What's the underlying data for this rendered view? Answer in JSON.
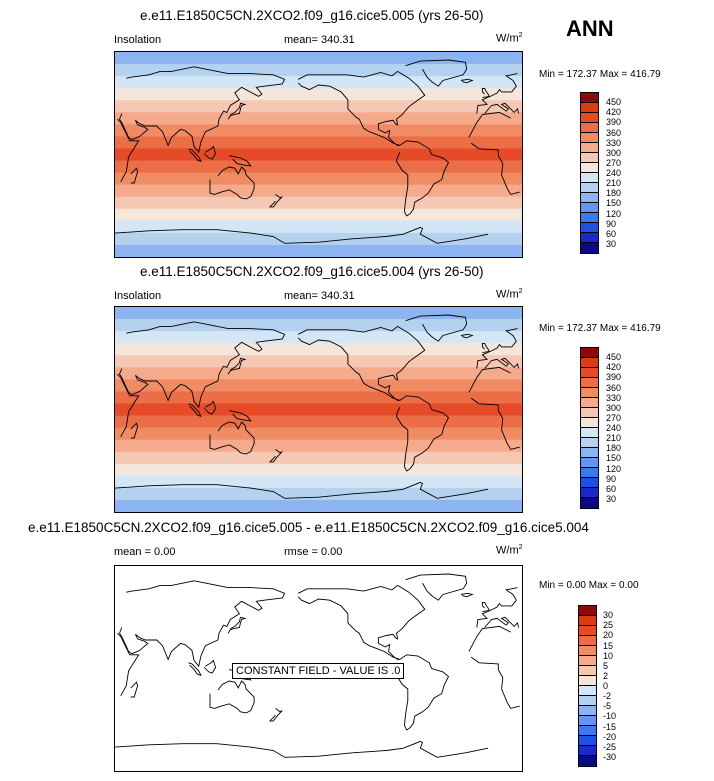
{
  "season": "ANN",
  "colors": {
    "ins": [
      "#0a0a87",
      "#1c28c8",
      "#1e50e6",
      "#3c78f0",
      "#6496f0",
      "#8cb4f0",
      "#b4d2f0",
      "#d2e6f5",
      "#f5e6dc",
      "#f5c8b4",
      "#f5aa8c",
      "#f08c64",
      "#eb6e46",
      "#e64b28",
      "#dc3c14",
      "#8c0a0a"
    ],
    "diff": [
      "#0a0a87",
      "#1c28c8",
      "#1e50e6",
      "#3c78f0",
      "#6496f0",
      "#8cb4f0",
      "#b4d2f0",
      "#d2e6f5",
      "#f5e6dc",
      "#f5c8b4",
      "#f5aa8c",
      "#f08c64",
      "#eb6e46",
      "#e64b28",
      "#dc3c14",
      "#8c0a0a"
    ]
  },
  "panels": [
    {
      "title": "e.e11.E1850C5CN.2XCO2.f09_g16.cice5.005 (yrs 26-50)",
      "left_label": "Insolation",
      "center_label": "mean= 340.31",
      "units": "W/m",
      "units_sup": "2",
      "minmax": "Min = 172.37 Max = 416.79",
      "levels": [
        "450",
        "420",
        "390",
        "360",
        "330",
        "300",
        "270",
        "240",
        "210",
        "180",
        "150",
        "120",
        "90",
        "60",
        "30"
      ]
    },
    {
      "title": "e.e11.E1850C5CN.2XCO2.f09_g16.cice5.004 (yrs 26-50)",
      "left_label": "Insolation",
      "center_label": "mean= 340.31",
      "units": "W/m",
      "units_sup": "2",
      "minmax": "Min = 172.37 Max = 416.79",
      "levels": [
        "450",
        "420",
        "390",
        "360",
        "330",
        "300",
        "270",
        "240",
        "210",
        "180",
        "150",
        "120",
        "90",
        "60",
        "30"
      ]
    },
    {
      "title": "e.e11.E1850C5CN.2XCO2.f09_g16.cice5.005 - e.e11.E1850C5CN.2XCO2.f09_g16.cice5.004",
      "left_label": "mean =   0.00",
      "center_label": "rmse =   0.00",
      "units": "W/m",
      "units_sup": "2",
      "minmax": "Min =  0.00 Max =  0.00",
      "constant_text": "CONSTANT FIELD - VALUE IS .0",
      "levels": [
        "30",
        "25",
        "20",
        "15",
        "10",
        "5",
        "2",
        "0",
        "-2",
        "-5",
        "-10",
        "-15",
        "-20",
        "-25",
        "-30"
      ]
    }
  ],
  "chart_data": [
    {
      "type": "heatmap",
      "title": "e.e11.E1850C5CN.2XCO2.f09_g16.cice5.005 (yrs 26-50)",
      "variable": "Insolation",
      "units": "W/m2",
      "mean": 340.31,
      "min": 172.37,
      "max": 416.79,
      "contour_levels": [
        30,
        60,
        90,
        120,
        150,
        180,
        210,
        240,
        270,
        300,
        330,
        360,
        390,
        420,
        450
      ],
      "zonal_band_levels_north_to_south": [
        180,
        210,
        240,
        270,
        300,
        330,
        360,
        390,
        420,
        390,
        360,
        330,
        300,
        270,
        240,
        210,
        180
      ]
    },
    {
      "type": "heatmap",
      "title": "e.e11.E1850C5CN.2XCO2.f09_g16.cice5.004 (yrs 26-50)",
      "variable": "Insolation",
      "units": "W/m2",
      "mean": 340.31,
      "min": 172.37,
      "max": 416.79,
      "contour_levels": [
        30,
        60,
        90,
        120,
        150,
        180,
        210,
        240,
        270,
        300,
        330,
        360,
        390,
        420,
        450
      ],
      "zonal_band_levels_north_to_south": [
        180,
        210,
        240,
        270,
        300,
        330,
        360,
        390,
        420,
        390,
        360,
        330,
        300,
        270,
        240,
        210,
        180
      ]
    },
    {
      "type": "heatmap",
      "title": "e.e11.E1850C5CN.2XCO2.f09_g16.cice5.005 - e.e11.E1850C5CN.2XCO2.f09_g16.cice5.004",
      "units": "W/m2",
      "mean": 0.0,
      "rmse": 0.0,
      "min": 0.0,
      "max": 0.0,
      "contour_levels": [
        -30,
        -25,
        -20,
        -15,
        -10,
        -5,
        -2,
        0,
        2,
        5,
        10,
        15,
        20,
        25,
        30
      ],
      "constant_value": 0.0
    }
  ]
}
